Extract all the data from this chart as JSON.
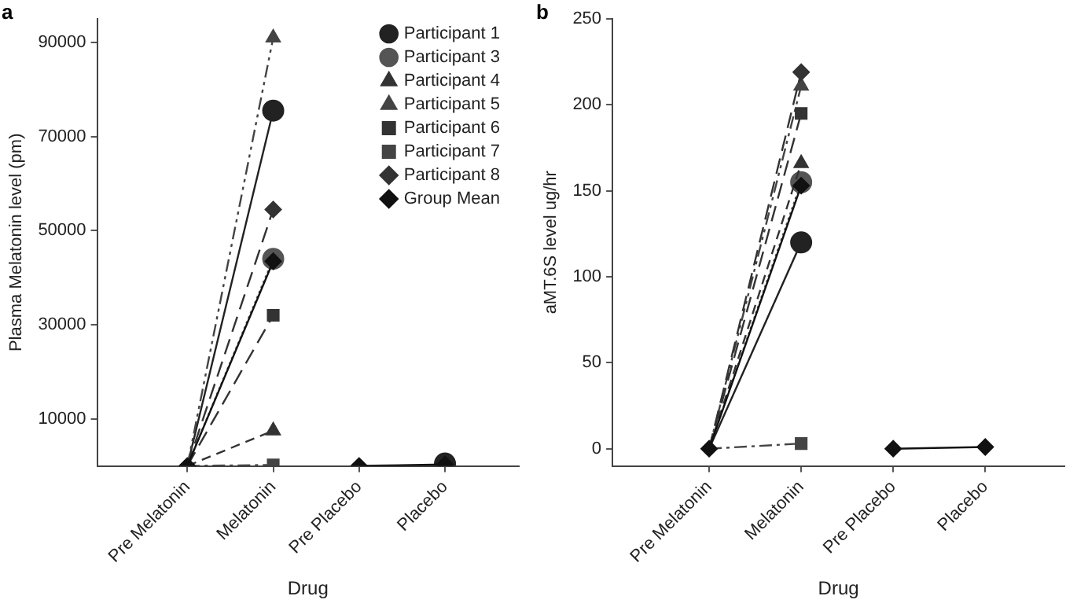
{
  "chart_data": [
    {
      "type": "line",
      "title": "a",
      "xlabel": "Drug",
      "ylabel": "Plasma Melatonin level (pm)",
      "categories": [
        "Pre Melatonin",
        "Melatonin",
        "Pre Placebo",
        "Placebo"
      ],
      "ylim": [
        0,
        95000
      ],
      "yticks": [
        10000,
        30000,
        50000,
        70000,
        90000
      ],
      "grid": false,
      "legend": "top right",
      "series": [
        {
          "name": "Participant 1",
          "color": "#222222",
          "marker": "circle",
          "line_style": "solid",
          "values": [
            0,
            75500,
            null,
            500
          ]
        },
        {
          "name": "Participant 3",
          "color": "#555555",
          "marker": "circle",
          "line_style": "dotted",
          "values": [
            0,
            44000,
            null,
            null
          ]
        },
        {
          "name": "Participant 4",
          "color": "#333333",
          "marker": "triangle",
          "line_style": "dashed",
          "values": [
            0,
            7500,
            null,
            null
          ]
        },
        {
          "name": "Participant 5",
          "color": "#444444",
          "marker": "triangle",
          "line_style": "dashdotdot",
          "values": [
            0,
            91000,
            null,
            null
          ]
        },
        {
          "name": "Participant 6",
          "color": "#333333",
          "marker": "square",
          "line_style": "longdash",
          "values": [
            0,
            32000,
            null,
            null
          ]
        },
        {
          "name": "Participant 7",
          "color": "#444444",
          "marker": "square",
          "line_style": "dashdot",
          "values": [
            0,
            200,
            null,
            null
          ]
        },
        {
          "name": "Participant 8",
          "color": "#333333",
          "marker": "diamond",
          "line_style": "longdash",
          "values": [
            0,
            54500,
            null,
            null
          ]
        },
        {
          "name": "Group Mean",
          "color": "#111111",
          "marker": "diamond",
          "line_style": "solid",
          "values": [
            0,
            43500,
            0,
            300
          ]
        }
      ]
    },
    {
      "type": "line",
      "title": "b",
      "xlabel": "Drug",
      "ylabel": "aMT.6S level ug/hr",
      "categories": [
        "Pre Melatonin",
        "Melatonin",
        "Pre Placebo",
        "Placebo"
      ],
      "ylim": [
        -10,
        250
      ],
      "yticks": [
        0,
        50,
        100,
        150,
        200,
        250
      ],
      "grid": false,
      "series": [
        {
          "color": "#222222",
          "marker": "circle",
          "line_style": "solid",
          "values": [
            0,
            120,
            null,
            null
          ]
        },
        {
          "color": "#555555",
          "marker": "circle",
          "line_style": "dotted",
          "values": [
            0,
            155,
            null,
            null
          ]
        },
        {
          "color": "#333333",
          "marker": "triangle",
          "line_style": "dashed",
          "values": [
            0,
            166,
            null,
            null
          ]
        },
        {
          "color": "#444444",
          "marker": "triangle",
          "line_style": "dashdotdot",
          "values": [
            0,
            211,
            null,
            null
          ]
        },
        {
          "color": "#333333",
          "marker": "square",
          "line_style": "longdash",
          "values": [
            0,
            195,
            null,
            null
          ]
        },
        {
          "color": "#444444",
          "marker": "square",
          "line_style": "dashdot",
          "values": [
            0,
            3,
            null,
            null
          ]
        },
        {
          "color": "#333333",
          "marker": "diamond",
          "line_style": "longdash",
          "values": [
            0,
            219,
            null,
            null
          ]
        },
        {
          "color": "#111111",
          "marker": "diamond",
          "line_style": "solid",
          "values": [
            0,
            153,
            0,
            1
          ]
        }
      ]
    }
  ]
}
